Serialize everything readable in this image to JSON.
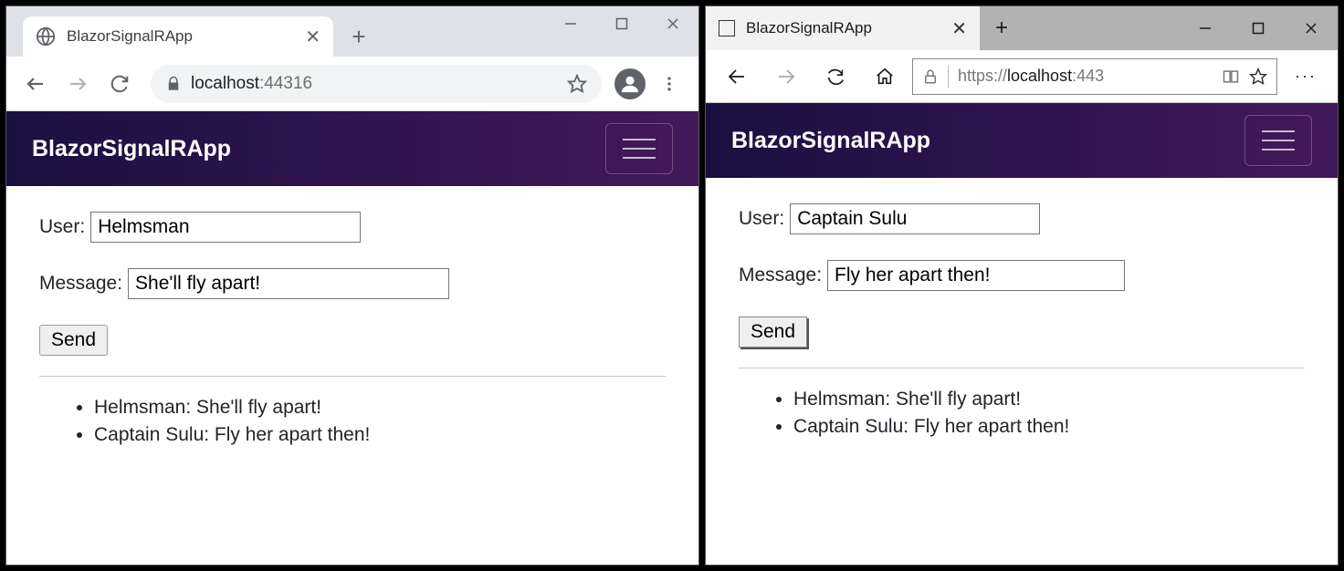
{
  "app": {
    "brand": "BlazorSignalRApp",
    "navbar_gradient_start": "#1a1040",
    "navbar_gradient_end": "#43195a",
    "user_label": "User:",
    "message_label": "Message:",
    "send_label": "Send",
    "messages": [
      "Helmsman: She'll fly apart!",
      "Captain Sulu: Fly her apart then!"
    ]
  },
  "chrome": {
    "tab_title": "BlazorSignalRApp",
    "url_host": "localhost",
    "url_port": ":44316",
    "user_value": "Helmsman",
    "message_value": "She'll fly apart!",
    "input_user_width": 296,
    "input_msg_width": 352
  },
  "edge": {
    "tab_title": "BlazorSignalRApp",
    "url_scheme": "https://",
    "url_host": "localhost",
    "url_port": ":443",
    "user_value": "Captain Sulu",
    "message_value": "Fly her apart then!",
    "input_user_width": 274,
    "input_msg_width": 326
  }
}
